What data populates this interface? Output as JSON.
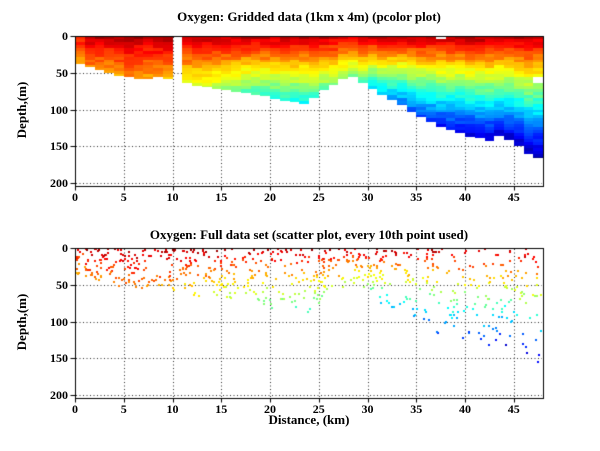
{
  "figure": {
    "background": "#ffffff",
    "text_color": "#000000",
    "top_plot": {
      "title": "Oxygen: Gridded data (1km x 4m) (pcolor plot)",
      "ylabel": "Depth,(m)",
      "xticks": [
        0,
        5,
        10,
        15,
        20,
        25,
        30,
        35,
        40,
        45
      ],
      "yticks": [
        0,
        50,
        100,
        150,
        200
      ],
      "grid_style": "dotted"
    },
    "bottom_plot": {
      "title": "Oxygen: Full data set (scatter plot, every 10th point used)",
      "xlabel": "Distance, (km)",
      "ylabel": "Depth,(m)",
      "xticks": [
        0,
        5,
        10,
        15,
        20,
        25,
        30,
        35,
        40,
        45
      ],
      "yticks": [
        0,
        50,
        100,
        150,
        200
      ],
      "grid_style": "dotted"
    }
  },
  "chart_data": [
    {
      "type": "heatmap",
      "title": "Oxygen: Gridded data (1km x 4m) (pcolor plot)",
      "xlabel": "",
      "ylabel": "Depth,(m)",
      "xlim": [
        0,
        48
      ],
      "ylim": [
        0,
        200
      ],
      "y_reversed": true,
      "grid": true,
      "cell_km": 1,
      "cell_m": 4,
      "colormap": "jet",
      "value_semantics": "normalized oxygen 1=max (dark red at surface) to 0=min (dark blue at depth); value decreases with depth as v = v_surface - (v_surface - v_bottom) * (depth/bottom_m)^depth_exponent",
      "depth_exponent": 0.9,
      "cell_noise": 0.07,
      "columns": {
        "km": [
          0,
          1,
          2,
          3,
          4,
          5,
          6,
          7,
          8,
          9,
          10,
          11,
          12,
          13,
          14,
          15,
          16,
          17,
          18,
          19,
          20,
          21,
          22,
          23,
          24,
          25,
          26,
          27,
          28,
          29,
          30,
          31,
          32,
          33,
          34,
          35,
          36,
          37,
          38,
          39,
          40,
          41,
          42,
          43,
          44,
          45,
          46,
          47
        ],
        "bottom_m": [
          38,
          42,
          46,
          50,
          54,
          56,
          58,
          58,
          56,
          58,
          null,
          64,
          68,
          70,
          72,
          74,
          76,
          78,
          80,
          82,
          86,
          88,
          90,
          92,
          84,
          74,
          66,
          58,
          56,
          64,
          72,
          80,
          87,
          94,
          103,
          110,
          117,
          124,
          128,
          132,
          137,
          139,
          143,
          136,
          141,
          150,
          160,
          166
        ],
        "v_surface": [
          0.88,
          0.96,
          0.96,
          0.94,
          0.95,
          0.96,
          0.96,
          0.95,
          0.95,
          0.96,
          null,
          0.95,
          0.95,
          0.95,
          0.95,
          0.95,
          0.95,
          0.95,
          0.95,
          0.95,
          0.95,
          0.95,
          0.95,
          0.95,
          0.95,
          0.95,
          0.94,
          0.93,
          0.93,
          0.94,
          0.95,
          0.96,
          0.96,
          0.96,
          0.96,
          0.96,
          0.96,
          0.96,
          0.96,
          0.96,
          0.97,
          0.97,
          0.97,
          0.96,
          0.96,
          0.97,
          0.97,
          0.95
        ],
        "v_bottom": [
          0.7,
          0.74,
          0.72,
          0.72,
          0.72,
          0.73,
          0.71,
          0.7,
          0.71,
          0.69,
          null,
          0.6,
          0.58,
          0.56,
          0.54,
          0.5,
          0.48,
          0.45,
          0.43,
          0.42,
          0.4,
          0.4,
          0.38,
          0.38,
          0.42,
          0.46,
          0.5,
          0.5,
          0.5,
          0.44,
          0.35,
          0.3,
          0.26,
          0.22,
          0.2,
          0.18,
          0.15,
          0.13,
          0.12,
          0.1,
          0.08,
          0.08,
          0.06,
          0.08,
          0.06,
          0.05,
          0.04,
          0.03
        ]
      },
      "missing_columns": [
        10
      ],
      "holes_col_row": [
        [
          37,
          0
        ],
        [
          47,
          14
        ],
        [
          47,
          15
        ]
      ]
    },
    {
      "type": "scatter",
      "title": "Oxygen: Full data set (scatter plot, every 10th point used)",
      "xlabel": "Distance, (km)",
      "ylabel": "Depth,(m)",
      "xlim": [
        0,
        48
      ],
      "ylim": [
        0,
        200
      ],
      "y_reversed": true,
      "grid": true,
      "colormap": "jet",
      "color_rule": "same oxygen field as gridded plot: dark red near surface grading through orange, yellow, green, cyan to dark blue at the deepest points",
      "n_points": 720,
      "marker_px": 2,
      "seed": 20,
      "depth_bias_exponent": 1.1,
      "depth_fraction_of_grid": 0.94,
      "color_noise": 0.1
    }
  ]
}
